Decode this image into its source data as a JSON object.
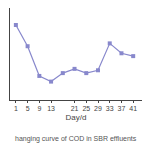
{
  "chart_data": {
    "type": "line",
    "x": [
      1,
      5,
      9,
      13,
      17,
      21,
      25,
      29,
      33,
      37,
      41
    ],
    "values": [
      0.88,
      0.73,
      0.52,
      0.48,
      0.54,
      0.57,
      0.54,
      0.56,
      0.75,
      0.68,
      0.66
    ],
    "color": "#8888cc",
    "marker": "square",
    "line_style": "solid",
    "xlabel": "Day/d",
    "xlim": [
      -1,
      44
    ],
    "xticks": [
      1,
      5,
      9,
      13,
      21,
      25,
      29,
      33,
      37,
      41
    ],
    "ylim": [
      0.35,
      1.0
    ],
    "tick_labels": "x",
    "grid": false,
    "annotations": [
      "hanging curve of COD in SBR effluents"
    ]
  }
}
